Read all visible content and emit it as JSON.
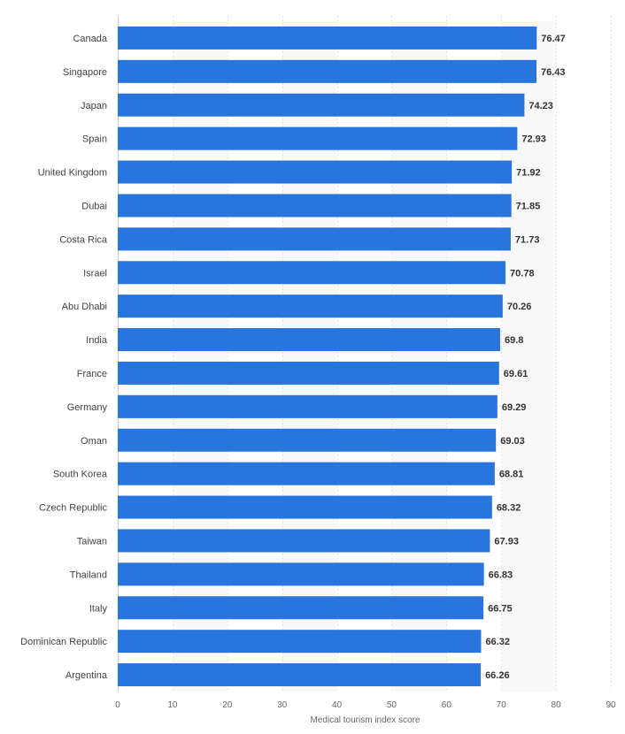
{
  "chart_data": {
    "type": "bar",
    "orientation": "horizontal",
    "categories": [
      "Canada",
      "Singapore",
      "Japan",
      "Spain",
      "United Kingdom",
      "Dubai",
      "Costa Rica",
      "Israel",
      "Abu Dhabi",
      "India",
      "France",
      "Germany",
      "Oman",
      "South Korea",
      "Czech Republic",
      "Taiwan",
      "Thailand",
      "Italy",
      "Dominican Republic",
      "Argentina"
    ],
    "values": [
      76.47,
      76.43,
      74.23,
      72.93,
      71.92,
      71.85,
      71.73,
      70.78,
      70.26,
      69.8,
      69.61,
      69.29,
      69.03,
      68.81,
      68.32,
      67.93,
      66.83,
      66.75,
      66.32,
      66.26
    ],
    "value_labels": [
      "76.47",
      "76.43",
      "74.23",
      "72.93",
      "71.92",
      "71.85",
      "71.73",
      "70.78",
      "70.26",
      "69.8",
      "69.61",
      "69.29",
      "69.03",
      "68.81",
      "68.32",
      "67.93",
      "66.83",
      "66.75",
      "66.32",
      "66.26"
    ],
    "title": "",
    "xlabel": "Medical tourism index score",
    "ylabel": "",
    "xlim": [
      0,
      90
    ],
    "xticks": [
      "0",
      "10",
      "20",
      "30",
      "40",
      "50",
      "60",
      "70",
      "80",
      "90"
    ],
    "grid": true,
    "legend": "none",
    "colors": {
      "bar": "#2876dd",
      "grid": "#e6e6e6",
      "band": "#f8f8f8"
    }
  }
}
